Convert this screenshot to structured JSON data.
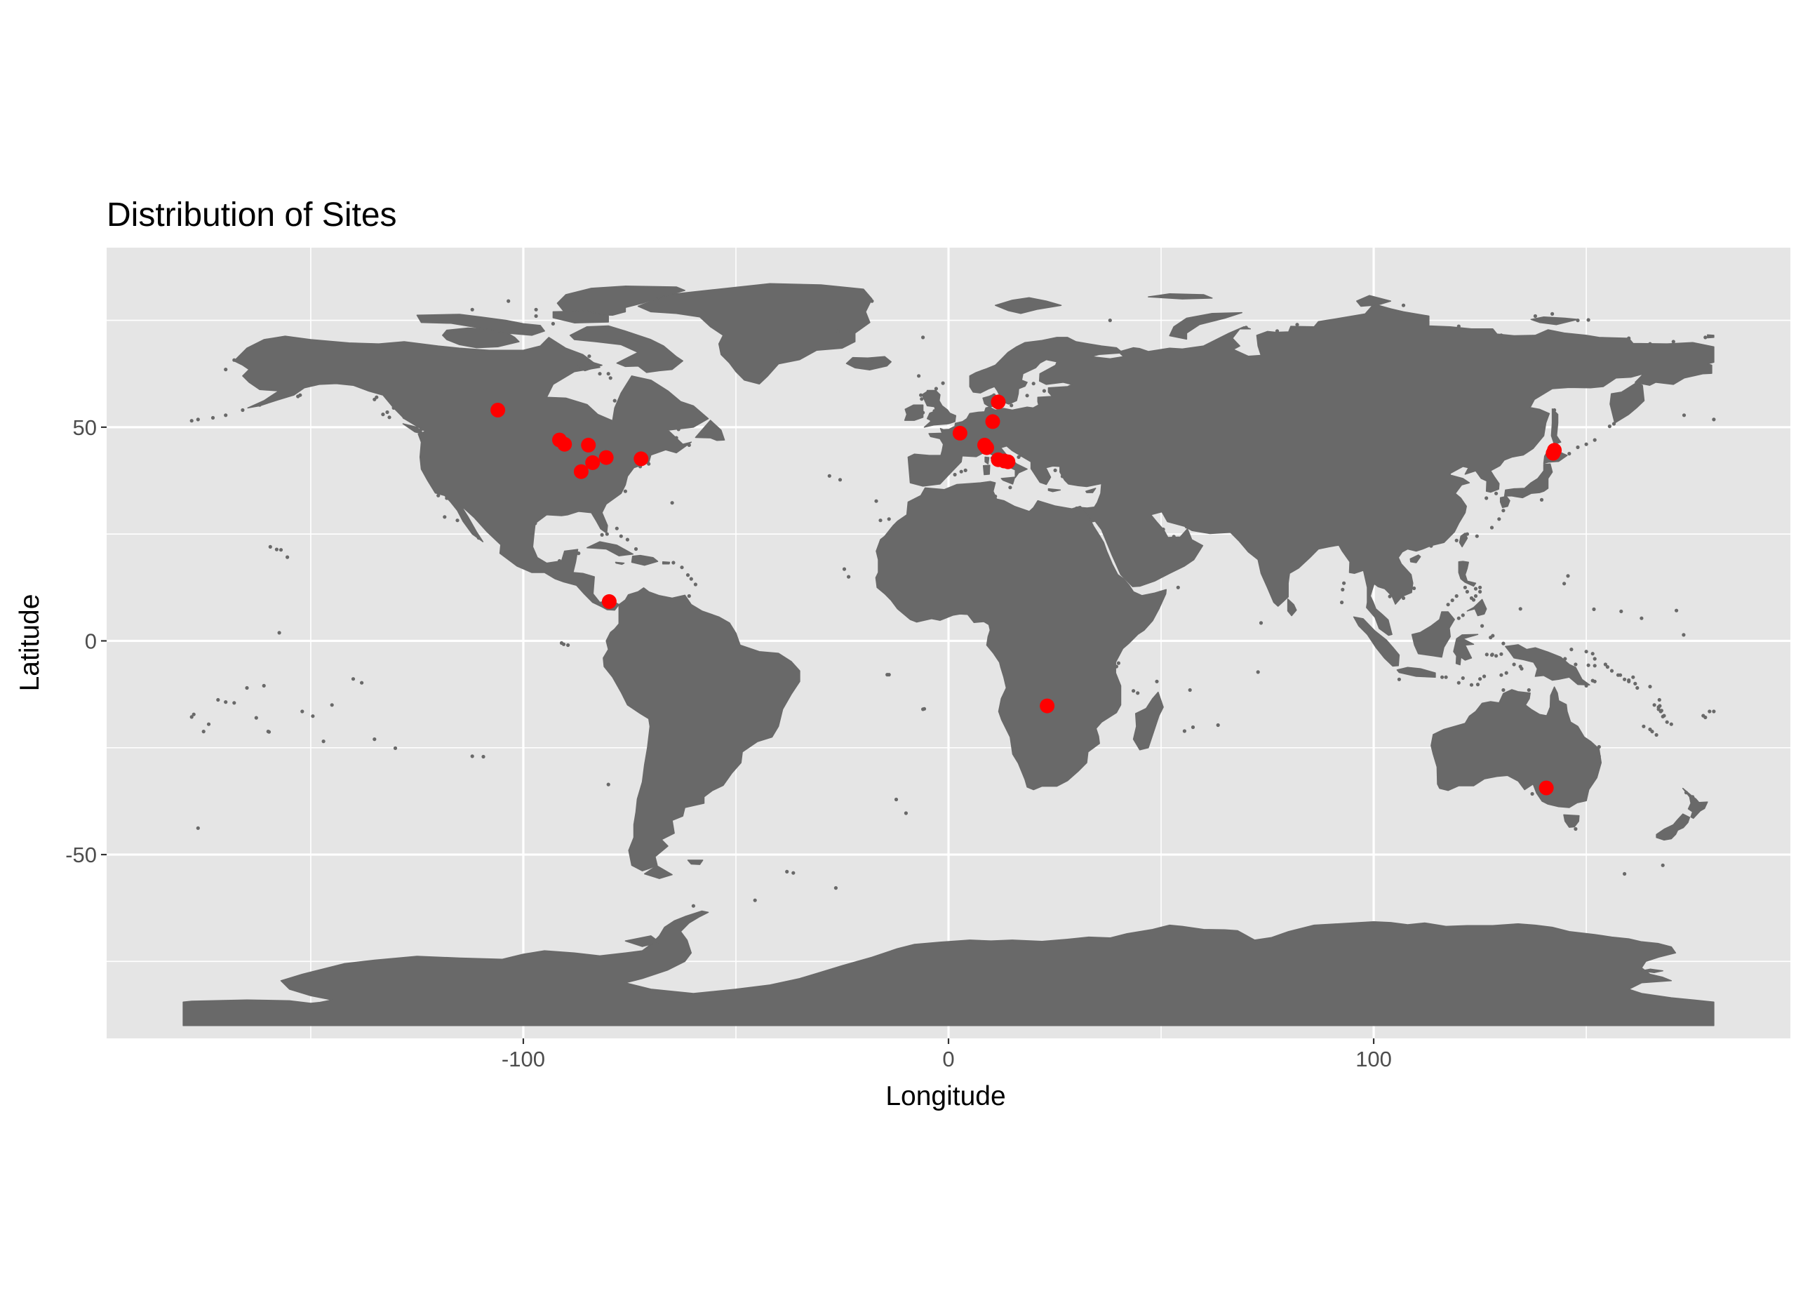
{
  "chart_data": {
    "type": "scatter",
    "title": "Distribution of Sites",
    "xlabel": "Longitude",
    "ylabel": "Latitude",
    "xlim": [
      -198,
      198
    ],
    "ylim": [
      -93,
      92
    ],
    "x_major_ticks": [
      -100,
      0,
      100
    ],
    "y_major_ticks": [
      -50,
      0,
      50
    ],
    "x_minor_grid": [
      -150,
      -50,
      50,
      150
    ],
    "y_minor_grid": [
      -75,
      -25,
      25,
      75
    ],
    "grid": true,
    "panel_background": "#e5e5e5",
    "gridline_color": "#ffffff",
    "land_color": "#696969",
    "point_color": "#ff0000",
    "basemap": "world",
    "points": [
      {
        "x": -106,
        "y": 54
      },
      {
        "x": -91.5,
        "y": 47
      },
      {
        "x": -90.3,
        "y": 46
      },
      {
        "x": -84.7,
        "y": 45.8
      },
      {
        "x": -83.7,
        "y": 41.7
      },
      {
        "x": -80.5,
        "y": 42.9
      },
      {
        "x": -86.4,
        "y": 39.6
      },
      {
        "x": -72.3,
        "y": 42.6
      },
      {
        "x": -79.8,
        "y": 9.2
      },
      {
        "x": 2.7,
        "y": 48.6
      },
      {
        "x": 11.7,
        "y": 55.9
      },
      {
        "x": 10.4,
        "y": 51.3
      },
      {
        "x": 8.5,
        "y": 45.8
      },
      {
        "x": 9.0,
        "y": 45.2
      },
      {
        "x": 11.7,
        "y": 42.4
      },
      {
        "x": 13.1,
        "y": 42.1
      },
      {
        "x": 14.0,
        "y": 41.9
      },
      {
        "x": 23.2,
        "y": -15.2
      },
      {
        "x": 142.5,
        "y": 44.6
      },
      {
        "x": 142.2,
        "y": 43.9
      },
      {
        "x": 140.6,
        "y": -34.4
      }
    ]
  }
}
